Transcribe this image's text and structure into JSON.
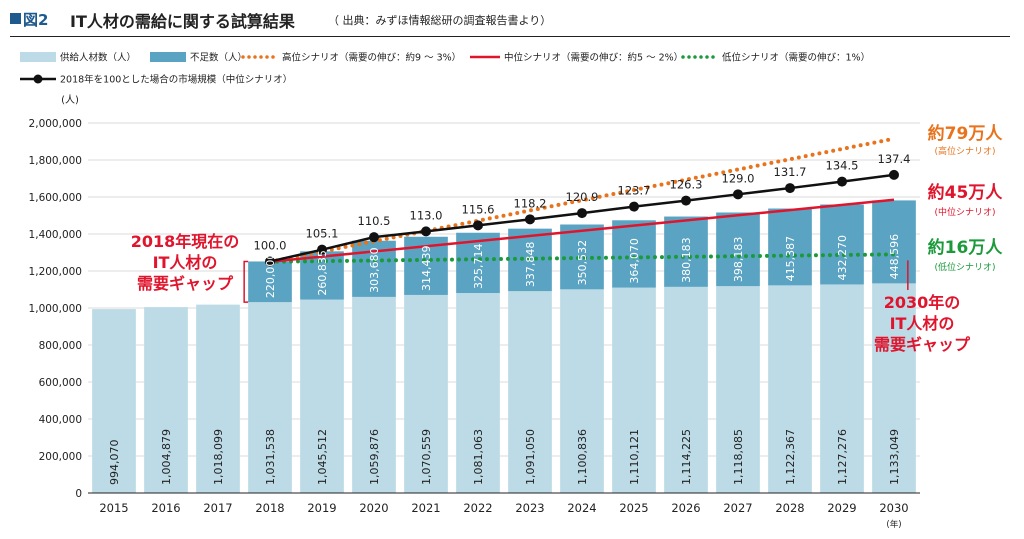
{
  "header": {
    "figure_no": "図2",
    "title": "IT人材の需給に関する試算結果",
    "source": "（ 出典：みずほ情報総研の調査報告書より）"
  },
  "colors": {
    "supply": "#bcdbe6",
    "shortage": "#5aa3c2",
    "high": "#e8731c",
    "mid": "#e0142c",
    "low": "#1a9a3a",
    "market": "#111111",
    "fig_blue": "#1e5a8e"
  },
  "chart_data": {
    "type": "bar",
    "stacked": true,
    "unit_label": "(人)",
    "x_unit_label": "(年)",
    "categories": [
      "2015",
      "2016",
      "2017",
      "2018",
      "2019",
      "2020",
      "2021",
      "2022",
      "2023",
      "2024",
      "2025",
      "2026",
      "2027",
      "2028",
      "2029",
      "2030"
    ],
    "ylim": [
      0,
      2000000
    ],
    "yticks": [
      0,
      200000,
      400000,
      600000,
      800000,
      1000000,
      1200000,
      1400000,
      1600000,
      1800000,
      2000000
    ],
    "ytick_labels": [
      "0",
      "200,000",
      "400,000",
      "600,000",
      "800,000",
      "1,000,000",
      "1,200,000",
      "1,400,000",
      "1,600,000",
      "1,800,000",
      "2,000,000"
    ],
    "legend": {
      "supply": "供給人材数（人）",
      "shortage": "不足数（人）",
      "high": "高位シナリオ（需要の伸び：約9 ～ 3%）",
      "mid": "中位シナリオ（需要の伸び：約5 ～ 2%）",
      "low": "低位シナリオ（需要の伸び：1%）",
      "market": "2018年を100とした場合の市場規模（中位シナリオ）"
    },
    "supply": [
      994070,
      1004879,
      1018099,
      1031538,
      1045512,
      1059876,
      1070559,
      1081063,
      1091050,
      1100836,
      1110121,
      1114225,
      1118085,
      1122367,
      1127276,
      1133049
    ],
    "supply_labels": [
      "994,070",
      "1,004,879",
      "1,018,099",
      "1,031,538",
      "1,045,512",
      "1,059,876",
      "1,070,559",
      "1,081,063",
      "1,091,050",
      "1,100,836",
      "1,110,121",
      "1,114,225",
      "1,118,085",
      "1,122,367",
      "1,127,276",
      "1,133,049"
    ],
    "shortage": [
      null,
      null,
      null,
      220000,
      260835,
      303680,
      314439,
      325714,
      337848,
      350532,
      364070,
      380183,
      398183,
      415387,
      432270,
      448596
    ],
    "shortage_labels": [
      "",
      "",
      "",
      "220,000",
      "260,835",
      "303,680",
      "314,439",
      "325,714",
      "337,848",
      "350,532",
      "364,070",
      "380,183",
      "398,183",
      "415,387",
      "432,270",
      "448,596"
    ],
    "market_index": [
      null,
      null,
      null,
      100.0,
      105.1,
      110.5,
      113.0,
      115.6,
      118.2,
      120.9,
      123.7,
      126.3,
      129.0,
      131.7,
      134.5,
      137.4
    ],
    "market_index_labels": [
      "",
      "",
      "",
      "100.0",
      "105.1",
      "110.5",
      "113.0",
      "115.6",
      "118.2",
      "120.9",
      "123.7",
      "126.3",
      "129.0",
      "131.7",
      "134.5",
      "137.4"
    ],
    "high_start_year": "2018",
    "high_start": 1250000,
    "high_end": 1915000,
    "mid_start_year": "2018",
    "mid_start": 1250000,
    "mid_end": 1585000,
    "low_start_year": "2018",
    "low_start": 1250000,
    "low_end": 1290000,
    "annotations": {
      "high_amount": "約79万人",
      "high_sub": "(高位シナリオ)",
      "mid_amount": "約45万人",
      "mid_sub": "(中位シナリオ)",
      "low_amount": "約16万人",
      "low_sub": "(低位シナリオ)",
      "gap2018": [
        "2018年現在の",
        "IT人材の",
        "需要ギャップ"
      ],
      "gap2030": [
        "2030年の",
        "IT人材の",
        "需要ギャップ"
      ]
    }
  }
}
